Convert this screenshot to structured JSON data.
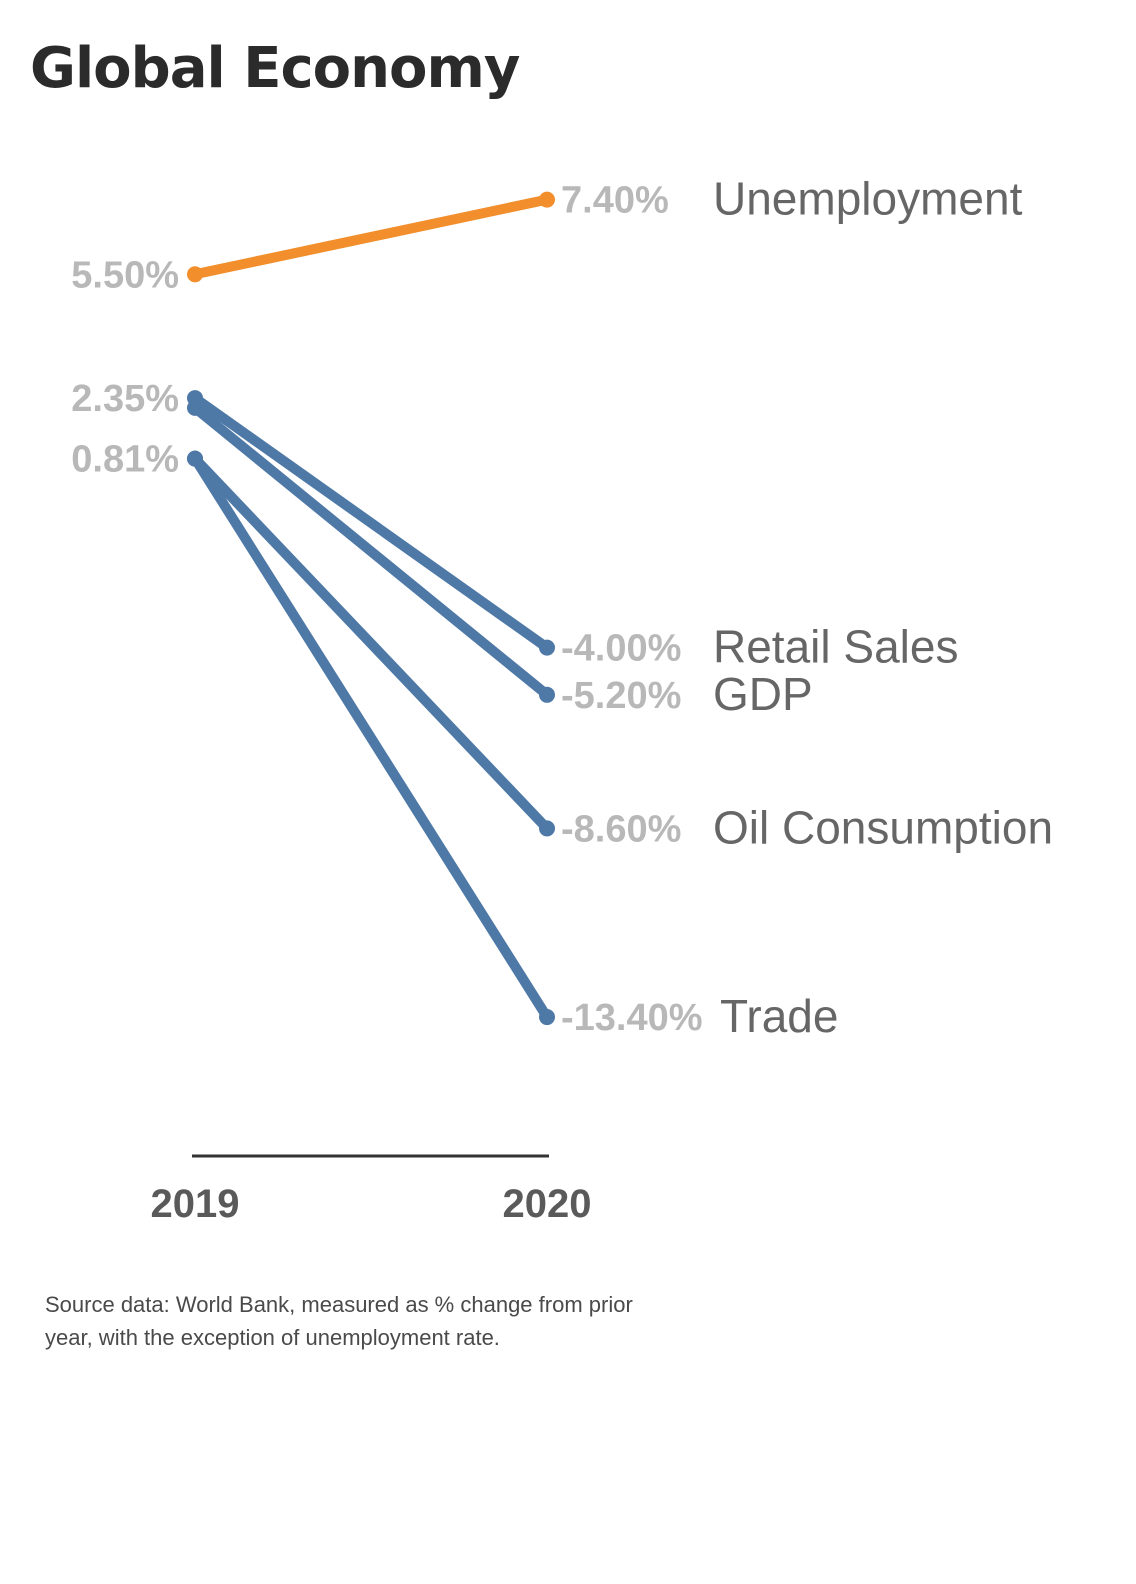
{
  "chart_data": {
    "type": "line",
    "title": "Global Economy",
    "x": [
      "2019",
      "2020"
    ],
    "colors": {
      "highlight": "#f28e2b",
      "base": "#4e79a7"
    },
    "start_labels": [
      "5.50%",
      "2.35%",
      "0.81%"
    ],
    "series": [
      {
        "name": "Unemployment",
        "values": [
          5.5,
          7.4
        ],
        "labels": [
          "5.50%",
          "7.40%"
        ],
        "color": "#f28e2b"
      },
      {
        "name": "Retail Sales",
        "values": [
          2.35,
          -4.0
        ],
        "labels": [
          "2.35%",
          "-4.00%"
        ],
        "color": "#4e79a7"
      },
      {
        "name": "GDP",
        "values": [
          2.1,
          -5.2
        ],
        "labels": [
          "",
          "-5.20%"
        ],
        "color": "#4e79a7"
      },
      {
        "name": "Oil Consumption",
        "values": [
          0.81,
          -8.6
        ],
        "labels": [
          "0.81%",
          "-8.60%"
        ],
        "color": "#4e79a7"
      },
      {
        "name": "Trade",
        "values": [
          0.81,
          -13.4
        ],
        "labels": [
          "0.81%",
          "-13.40%"
        ],
        "color": "#4e79a7"
      }
    ],
    "note": "Source data: World Bank, measured as % change from prior year, with the exception of  unemployment rate."
  }
}
